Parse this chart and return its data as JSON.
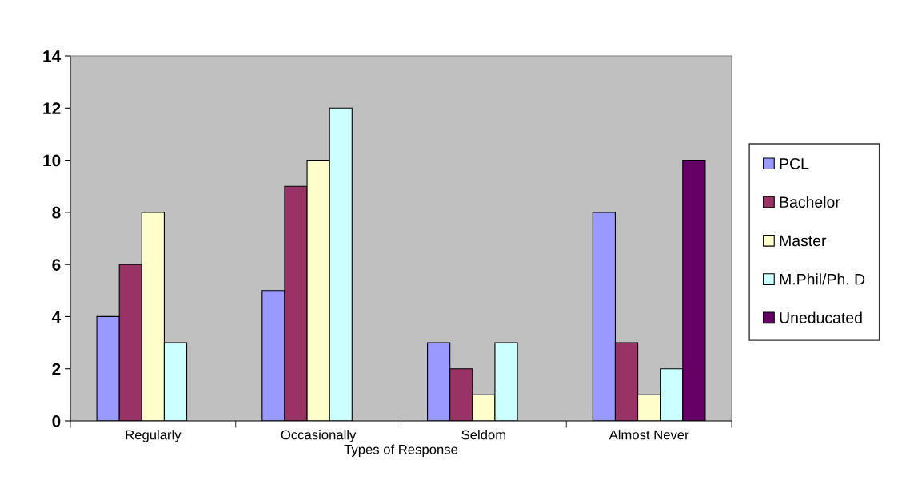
{
  "chart_data": {
    "type": "bar",
    "xlabel": "Types of Response",
    "categories": [
      "Regularly",
      "Occasionally",
      "Seldom",
      "Almost Never"
    ],
    "series": [
      {
        "name": "PCL",
        "color": "#9999ff",
        "values": [
          4,
          5,
          3,
          8
        ]
      },
      {
        "name": "Bachelor",
        "color": "#993366",
        "values": [
          6,
          9,
          2,
          3
        ]
      },
      {
        "name": "Master",
        "color": "#ffffcc",
        "values": [
          8,
          10,
          1,
          1
        ]
      },
      {
        "name": "M.Phil/Ph. D",
        "color": "#ccffff",
        "values": [
          3,
          12,
          3,
          2
        ]
      },
      {
        "name": "Uneducated",
        "color": "#660066",
        "values": [
          null,
          null,
          null,
          10
        ]
      }
    ],
    "ylim": [
      0,
      14
    ],
    "yticks": [
      0,
      2,
      4,
      6,
      8,
      10,
      12,
      14
    ],
    "grid": false,
    "legend": "right"
  }
}
